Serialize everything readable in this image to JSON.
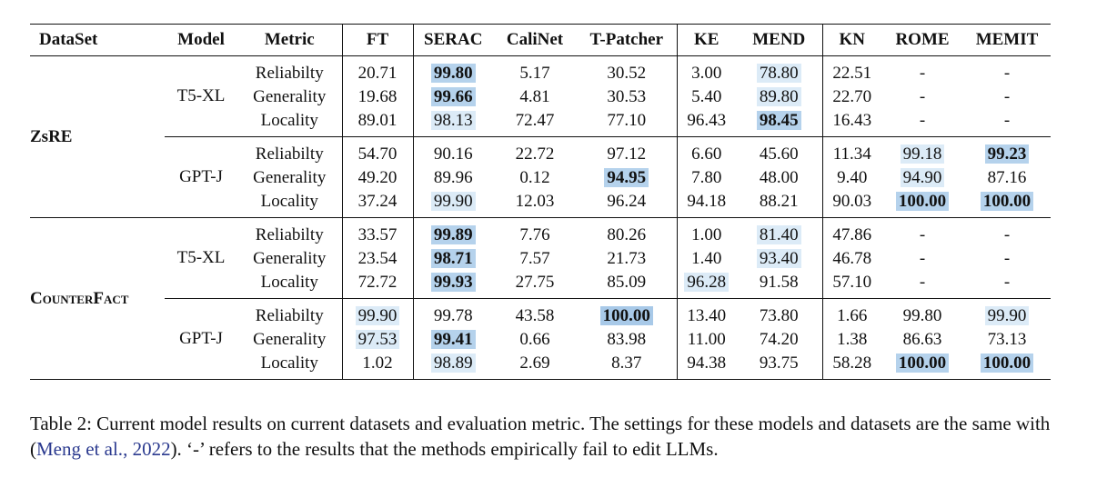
{
  "table": {
    "headers": [
      "DataSet",
      "Model",
      "Metric",
      "FT",
      "SERAC",
      "CaliNet",
      "T-Patcher",
      "KE",
      "MEND",
      "KN",
      "ROME",
      "MEMIT"
    ],
    "datasets": [
      {
        "name_main": "ZsRE",
        "name_sc": "",
        "models": [
          {
            "name": "T5-XL",
            "rows": [
              {
                "metric": "Reliabilty",
                "values": [
                  "20.71",
                  "99.80",
                  "5.17",
                  "30.52",
                  "3.00",
                  "78.80",
                  "22.51",
                  "-",
                  "-"
                ],
                "hl": [
                  0,
                  2,
                  0,
                  0,
                  0,
                  1,
                  0,
                  0,
                  0
                ]
              },
              {
                "metric": "Generality",
                "values": [
                  "19.68",
                  "99.66",
                  "4.81",
                  "30.53",
                  "5.40",
                  "89.80",
                  "22.70",
                  "-",
                  "-"
                ],
                "hl": [
                  0,
                  2,
                  0,
                  0,
                  0,
                  1,
                  0,
                  0,
                  0
                ]
              },
              {
                "metric": "Locality",
                "values": [
                  "89.01",
                  "98.13",
                  "72.47",
                  "77.10",
                  "96.43",
                  "98.45",
                  "16.43",
                  "-",
                  "-"
                ],
                "hl": [
                  0,
                  1,
                  0,
                  0,
                  0,
                  2,
                  0,
                  0,
                  0
                ]
              }
            ]
          },
          {
            "name": "GPT-J",
            "rows": [
              {
                "metric": "Reliabilty",
                "values": [
                  "54.70",
                  "90.16",
                  "22.72",
                  "97.12",
                  "6.60",
                  "45.60",
                  "11.34",
                  "99.18",
                  "99.23"
                ],
                "hl": [
                  0,
                  0,
                  0,
                  0,
                  0,
                  0,
                  0,
                  1,
                  2
                ]
              },
              {
                "metric": "Generality",
                "values": [
                  "49.20",
                  "89.96",
                  "0.12",
                  "94.95",
                  "7.80",
                  "48.00",
                  "9.40",
                  "94.90",
                  "87.16"
                ],
                "hl": [
                  0,
                  0,
                  0,
                  2,
                  0,
                  0,
                  0,
                  1,
                  0
                ]
              },
              {
                "metric": "Locality",
                "values": [
                  "37.24",
                  "99.90",
                  "12.03",
                  "96.24",
                  "94.18",
                  "88.21",
                  "90.03",
                  "100.00",
                  "100.00"
                ],
                "hl": [
                  0,
                  1,
                  0,
                  0,
                  0,
                  0,
                  0,
                  2,
                  2
                ]
              }
            ]
          }
        ]
      },
      {
        "name_main": "C",
        "name_sc": "ounterFact",
        "models": [
          {
            "name": "T5-XL",
            "rows": [
              {
                "metric": "Reliabilty",
                "values": [
                  "33.57",
                  "99.89",
                  "7.76",
                  "80.26",
                  "1.00",
                  "81.40",
                  "47.86",
                  "-",
                  "-"
                ],
                "hl": [
                  0,
                  2,
                  0,
                  0,
                  0,
                  1,
                  0,
                  0,
                  0
                ]
              },
              {
                "metric": "Generality",
                "values": [
                  "23.54",
                  "98.71",
                  "7.57",
                  "21.73",
                  "1.40",
                  "93.40",
                  "46.78",
                  "-",
                  "-"
                ],
                "hl": [
                  0,
                  2,
                  0,
                  0,
                  0,
                  1,
                  0,
                  0,
                  0
                ]
              },
              {
                "metric": "Locality",
                "values": [
                  "72.72",
                  "99.93",
                  "27.75",
                  "85.09",
                  "96.28",
                  "91.58",
                  "57.10",
                  "-",
                  "-"
                ],
                "hl": [
                  0,
                  2,
                  0,
                  0,
                  1,
                  0,
                  0,
                  0,
                  0
                ]
              }
            ]
          },
          {
            "name": "GPT-J",
            "rows": [
              {
                "metric": "Reliabilty",
                "values": [
                  "99.90",
                  "99.78",
                  "43.58",
                  "100.00",
                  "13.40",
                  "73.80",
                  "1.66",
                  "99.80",
                  "99.90"
                ],
                "hl": [
                  1,
                  0,
                  0,
                  3,
                  0,
                  0,
                  0,
                  0,
                  1
                ]
              },
              {
                "metric": "Generality",
                "values": [
                  "97.53",
                  "99.41",
                  "0.66",
                  "83.98",
                  "11.00",
                  "74.20",
                  "1.38",
                  "86.63",
                  "73.13"
                ],
                "hl": [
                  1,
                  2,
                  0,
                  0,
                  0,
                  0,
                  0,
                  0,
                  0
                ]
              },
              {
                "metric": "Locality",
                "values": [
                  "1.02",
                  "98.89",
                  "2.69",
                  "8.37",
                  "94.38",
                  "93.75",
                  "58.28",
                  "100.00",
                  "100.00"
                ],
                "hl": [
                  0,
                  1,
                  0,
                  0,
                  0,
                  0,
                  0,
                  2,
                  2
                ]
              }
            ]
          }
        ]
      }
    ]
  },
  "caption": {
    "part1": "Table 2: Current model results on current datasets and evaluation metric. The settings for these models and datasets are the same with (",
    "cite_author": "Meng et al.",
    "cite_sep": ", ",
    "cite_year": "2022",
    "part2": "). ‘-’ refers to the results that the methods empirically fail to edit LLMs."
  }
}
